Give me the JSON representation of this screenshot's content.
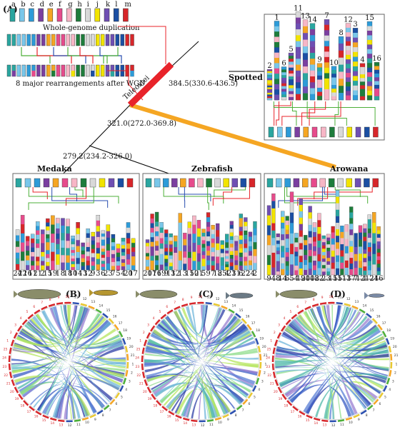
{
  "panels": {
    "A": "(A)",
    "B": "(B)",
    "C": "(C)",
    "D": "(D)"
  },
  "ancestral_labels": [
    "a",
    "b",
    "c",
    "d",
    "e",
    "f",
    "g",
    "h",
    "i",
    "j",
    "k",
    "l",
    "m"
  ],
  "wgd_label": "Whole-genome duplication",
  "rearr_label": "8 major rearrangements after WGD",
  "clade_label": "Teleostei",
  "species": {
    "gar": "Spotted gar",
    "medaka": "Medaka",
    "zebrafish": "Zebrafish",
    "arowana": "Arowana"
  },
  "divergence": {
    "teleost_gar": "384.5(330.6-436.5)",
    "arowana_split": "321.0(272.0-369.8)",
    "medaka_zebrafish": "279.2(234.2-326.0)"
  },
  "medaka_chrom_labels": [
    "24",
    "22",
    "16",
    "11",
    "21",
    "2",
    "15",
    "19",
    "1",
    "8",
    "18",
    "10",
    "14",
    "13",
    "12",
    "9",
    "3",
    "6",
    "23",
    "7",
    "5",
    "4",
    "20",
    "17"
  ],
  "zebrafish_chrom_labels": [
    "20",
    "17",
    "16",
    "19",
    "9",
    "13",
    "12",
    "1",
    "3",
    "15",
    "10",
    "21",
    "5",
    "9",
    "7",
    "18",
    "25",
    "4",
    "23",
    "11",
    "6",
    "22",
    "24",
    "2"
  ],
  "arowana_chrom_labels": [
    "9",
    "4",
    "8",
    "14",
    "6",
    "5",
    "4",
    "19",
    "20",
    "10",
    "18",
    "22",
    "2",
    "3",
    "15",
    "15",
    "11",
    "13",
    "17",
    "7",
    "12",
    "1",
    "12",
    "24",
    "16"
  ],
  "gar_chrom_labels": [
    "2",
    "1",
    "6",
    "5",
    "11",
    "13",
    "14",
    "9",
    "7",
    "10",
    "8",
    "12",
    "3",
    "4",
    "15",
    "16"
  ],
  "colors": {
    "red": "#e8232a",
    "orange": "#f5a623",
    "green": "#4caf38",
    "blue": "#2a4fb0",
    "ancestral": [
      "#2aa6a0",
      "#79c7ea",
      "#2d9bd8",
      "#7b3fa0",
      "#f5a623",
      "#e64b8c",
      "#f7b6c6",
      "#1e7d3c",
      "#d9d9d9",
      "#f2e400",
      "#6f4fb3",
      "#1b4fa3",
      "#d7262a"
    ]
  },
  "circos": {
    "B": {
      "left": "Spotted gar",
      "right": "Arowana"
    },
    "C": {
      "left": "Spotted gar",
      "right": "Zebrafish"
    },
    "D": {
      "left": "Spotted gar",
      "right": "Medaka"
    }
  }
}
